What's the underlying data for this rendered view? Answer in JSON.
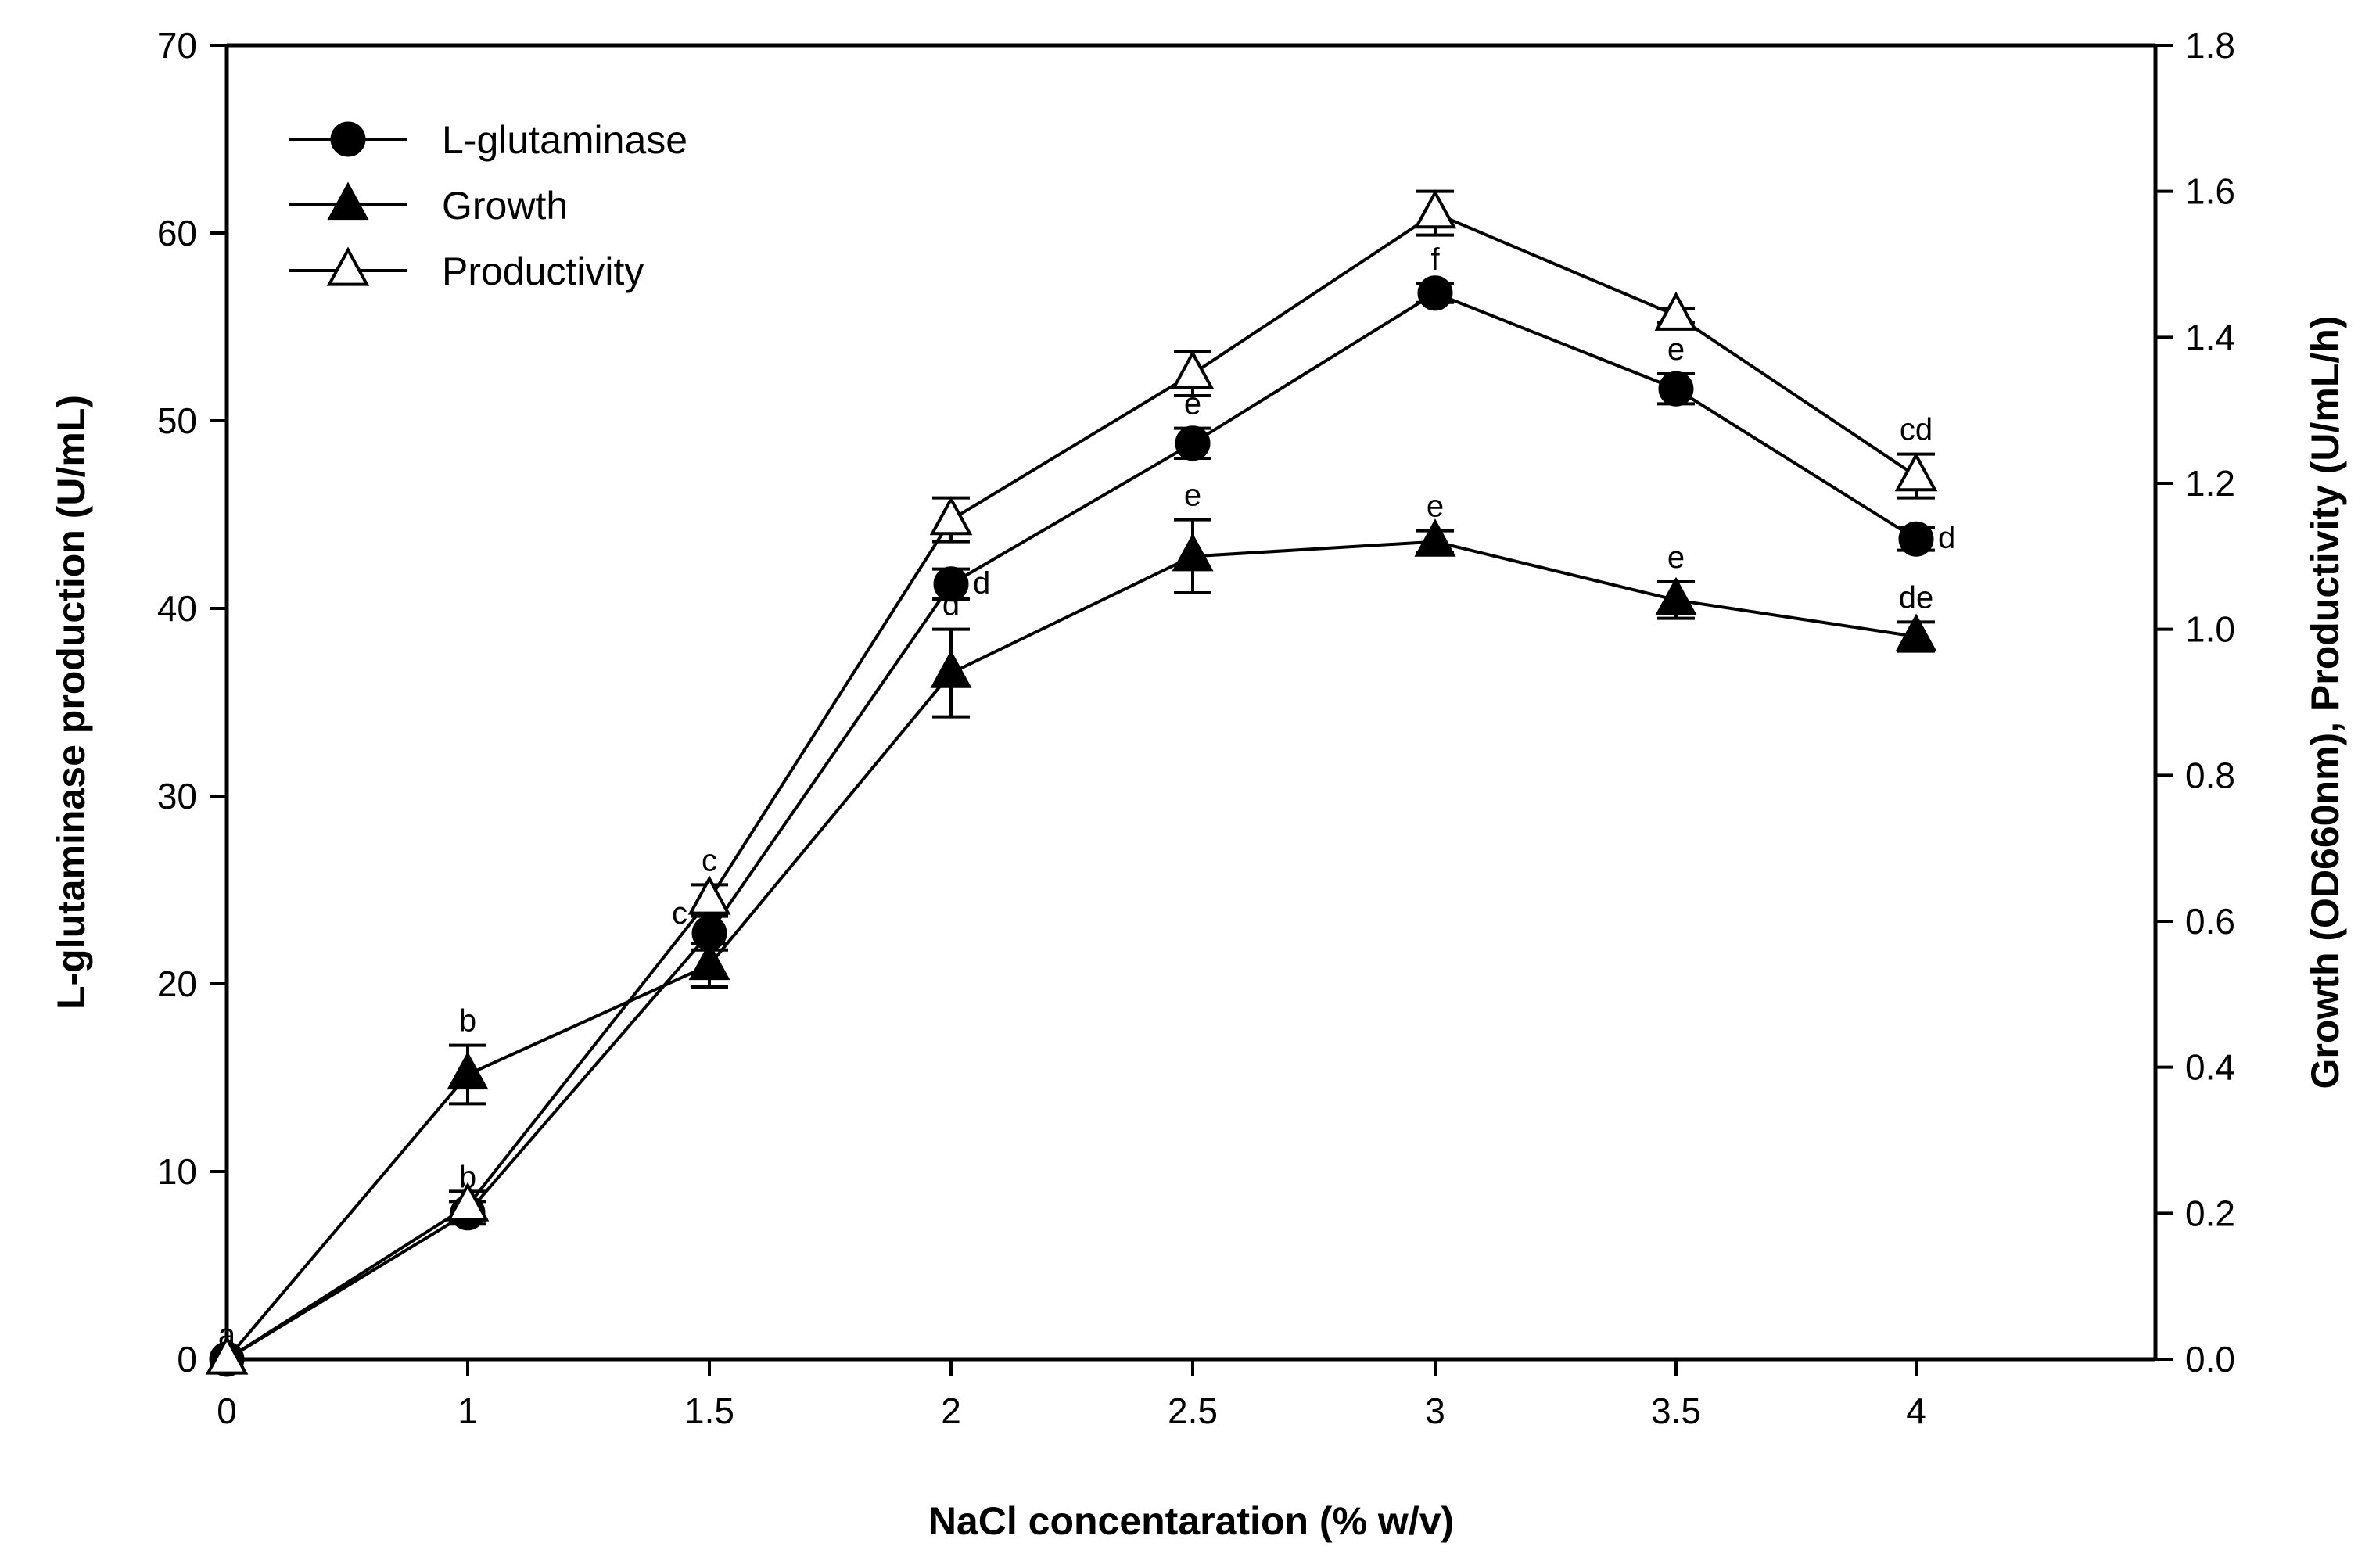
{
  "chart_data": {
    "type": "line",
    "title": "",
    "xlabel": "NaCl concentaration (% w/v)",
    "ylabel": "L-glutaminase production (U/mL)",
    "y2label": "Growth (OD660nm), Productivity (U/mL/h)",
    "categories": [
      "0",
      "1",
      "1.5",
      "2",
      "2.5",
      "3",
      "3.5",
      "4"
    ],
    "ylim": [
      0,
      70
    ],
    "y2lim": [
      0,
      1.8
    ],
    "yticks": [
      "0",
      "10",
      "20",
      "30",
      "40",
      "50",
      "60",
      "70"
    ],
    "y2ticks": [
      "0.0",
      "0.2",
      "0.4",
      "0.6",
      "0.8",
      "1.0",
      "1.2",
      "1.4",
      "1.6",
      "1.8"
    ],
    "legend_position": "top-left",
    "series": [
      {
        "name": "L-glutaminase",
        "axis": "left",
        "marker": "filled-circle",
        "values": [
          0,
          7.8,
          22.7,
          41.3,
          48.8,
          56.8,
          51.7,
          43.7
        ],
        "errors": [
          0,
          0.6,
          0.9,
          0.8,
          0.8,
          0.5,
          0.8,
          0.6
        ],
        "labels": [
          "a",
          "b",
          "c",
          "d",
          "e",
          "f",
          "e",
          "d"
        ]
      },
      {
        "name": "Growth",
        "axis": "right",
        "marker": "filled-triangle",
        "values": [
          0,
          0.39,
          0.54,
          0.94,
          1.1,
          1.12,
          1.04,
          0.99
        ],
        "errors": [
          0,
          0.04,
          0.03,
          0.06,
          0.05,
          0.015,
          0.025,
          0.02
        ],
        "labels": [
          "",
          "b",
          "",
          "d",
          "e",
          "e",
          "e",
          "de"
        ]
      },
      {
        "name": "Productivity",
        "axis": "right",
        "marker": "open-triangle",
        "values": [
          0,
          0.21,
          0.63,
          1.15,
          1.35,
          1.57,
          1.43,
          1.21
        ],
        "errors": [
          0,
          0.02,
          0.02,
          0.03,
          0.03,
          0.03,
          0.01,
          0.03
        ],
        "labels": [
          "",
          "",
          "c",
          "",
          "",
          "",
          "",
          "cd"
        ]
      }
    ]
  }
}
